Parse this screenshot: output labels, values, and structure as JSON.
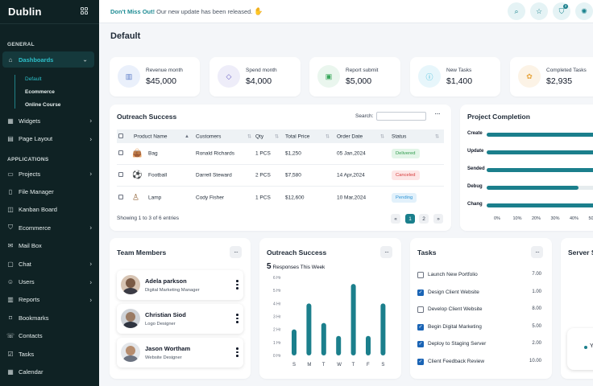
{
  "brand": {
    "name": "Dublin"
  },
  "sidebar": {
    "general_title": "GENERAL",
    "applications_title": "APPLICATIONS",
    "dashboards": "Dashboards",
    "sub_items": [
      "Default",
      "Ecommerce",
      "Online Course"
    ],
    "general_items": [
      {
        "label": "Widgets",
        "icon": "widgets-icon"
      },
      {
        "label": "Page Layout",
        "icon": "layout-icon"
      }
    ],
    "app_items": [
      {
        "label": "Projects",
        "icon": "folder-icon"
      },
      {
        "label": "File Manager",
        "icon": "file-icon"
      },
      {
        "label": "Kanban Board",
        "icon": "kanban-icon"
      },
      {
        "label": "Ecommerce",
        "icon": "cart-icon"
      },
      {
        "label": "Mail Box",
        "icon": "mail-icon"
      },
      {
        "label": "Chat",
        "icon": "chat-icon"
      },
      {
        "label": "Users",
        "icon": "users-icon"
      },
      {
        "label": "Reports",
        "icon": "reports-icon"
      },
      {
        "label": "Bookmarks",
        "icon": "bookmark-icon"
      },
      {
        "label": "Contacts",
        "icon": "contacts-icon"
      },
      {
        "label": "Tasks",
        "icon": "tasks-icon"
      },
      {
        "label": "Calendar",
        "icon": "calendar-icon"
      }
    ]
  },
  "topbar": {
    "announce_strong": "Don't Miss Out!",
    "announce_text": "Our new update has been released.",
    "cart_badge": "2"
  },
  "page_title": "Default",
  "stats": [
    {
      "label": "Revenue month",
      "value": "$45,000",
      "icon": "chart-icon",
      "color": "#5b7cc8"
    },
    {
      "label": "Spend month",
      "value": "$4,000",
      "icon": "box-icon",
      "color": "#6b63c5"
    },
    {
      "label": "Report submit",
      "value": "$5,000",
      "icon": "report-icon",
      "color": "#3aa85c"
    },
    {
      "label": "New Tasks",
      "value": "$1,400",
      "icon": "info-icon",
      "color": "#2bb4d6"
    },
    {
      "label": "Completed Tasks",
      "value": "$2,935",
      "icon": "done-icon",
      "color": "#e8a640"
    }
  ],
  "outreach_table": {
    "title": "Outreach Success",
    "search_label": "Search:",
    "columns": [
      "Product Name",
      "Customers",
      "Qty",
      "Total Price",
      "Order Date",
      "Status"
    ],
    "rows": [
      {
        "product": "Bag",
        "customer": "Ronald Richards",
        "qty": "1 PCS",
        "price": "$1,250",
        "date": "05 Jan,2024",
        "status": "Delivered"
      },
      {
        "product": "Football",
        "customer": "Darrell Steward",
        "qty": "2 PCS",
        "price": "$7,580",
        "date": "14 Apr,2024",
        "status": "Canceled"
      },
      {
        "product": "Lamp",
        "customer": "Cody Fisher",
        "qty": "1 PCS",
        "price": "$12,600",
        "date": "10 Mar,2024",
        "status": "Pending"
      }
    ],
    "footer": "Showing 1 to 3 of 6 entries",
    "pager": {
      "prev": "«",
      "pages": [
        "1",
        "2"
      ],
      "next": "»"
    }
  },
  "project_completion": {
    "title": "Project Completion",
    "items": [
      {
        "label": "Create",
        "value": 1.0
      },
      {
        "label": "Update",
        "value": 1.0
      },
      {
        "label": "Sended",
        "value": 1.0
      },
      {
        "label": "Debug",
        "value": 0.71
      },
      {
        "label": "Chang",
        "value": 1.0
      }
    ],
    "ticks": [
      "0%",
      "10%",
      "20%",
      "30%",
      "40%",
      "50"
    ]
  },
  "team": {
    "title": "Team Members",
    "members": [
      {
        "name": "Adela parkson",
        "role": "Digital Marketing Manager"
      },
      {
        "name": "Christian Siod",
        "role": "Logo Designer"
      },
      {
        "name": "Jason Wortham",
        "role": "Website Designer"
      }
    ]
  },
  "chart_data": {
    "type": "bar",
    "title": "Outreach Success",
    "subtitle_value": "5",
    "subtitle_text": "Responses This Week",
    "categories": [
      "S",
      "M",
      "T",
      "W",
      "T",
      "F",
      "S"
    ],
    "values": [
      2,
      4,
      2.5,
      1.5,
      5.5,
      1.5,
      4
    ],
    "ylim": [
      0,
      6
    ],
    "yticks": [
      "6 Hr",
      "5 Hr",
      "4 Hr",
      "3 Hr",
      "2 Hr",
      "1 Hr",
      "0 Hr"
    ]
  },
  "tasks": {
    "title": "Tasks",
    "items": [
      {
        "label": "Launch New Portfolio",
        "value": "7.00",
        "checked": false
      },
      {
        "label": "Design Client Website",
        "value": "1.00",
        "checked": true
      },
      {
        "label": "Develop Client Website",
        "value": "8.00",
        "checked": false
      },
      {
        "label": "Begin Digital Marketing",
        "value": "5.00",
        "checked": true
      },
      {
        "label": "Deploy to Staging Server",
        "value": "2.00",
        "checked": true
      },
      {
        "label": "Client Feedback Review",
        "value": "10.00",
        "checked": true
      }
    ]
  },
  "server": {
    "title": "Server S",
    "legend": "Y"
  },
  "colors": {
    "accent": "#1b7f8c",
    "sidebar": "#0f2224",
    "active": "#2dbfc9"
  }
}
